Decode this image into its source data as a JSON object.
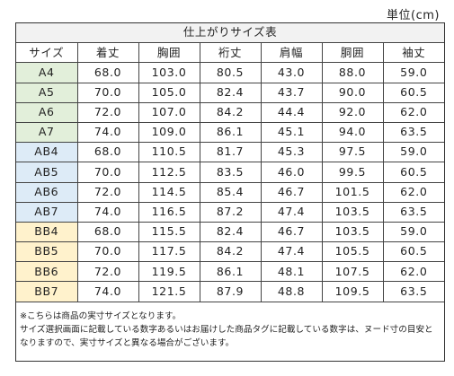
{
  "unit_label": "単位(cm)",
  "table": {
    "title": "仕上がりサイズ表",
    "headers": [
      "サイズ",
      "着丈",
      "胸囲",
      "裄丈",
      "肩幅",
      "胴囲",
      "袖丈"
    ],
    "group_colors": {
      "A": "#e2efda",
      "AB": "#ddebf7",
      "BB": "#fff2cc"
    },
    "rows": [
      {
        "size": "A4",
        "group": "A",
        "values": [
          "68.0",
          "103.0",
          "80.5",
          "43.0",
          "88.0",
          "59.0"
        ]
      },
      {
        "size": "A5",
        "group": "A",
        "values": [
          "70.0",
          "105.0",
          "82.4",
          "43.7",
          "90.0",
          "60.5"
        ]
      },
      {
        "size": "A6",
        "group": "A",
        "values": [
          "72.0",
          "107.0",
          "84.2",
          "44.4",
          "92.0",
          "62.0"
        ]
      },
      {
        "size": "A7",
        "group": "A",
        "values": [
          "74.0",
          "109.0",
          "86.1",
          "45.1",
          "94.0",
          "63.5"
        ]
      },
      {
        "size": "AB4",
        "group": "AB",
        "values": [
          "68.0",
          "110.5",
          "81.7",
          "45.3",
          "97.5",
          "59.0"
        ]
      },
      {
        "size": "AB5",
        "group": "AB",
        "values": [
          "70.0",
          "112.5",
          "83.5",
          "46.0",
          "99.5",
          "60.5"
        ]
      },
      {
        "size": "AB6",
        "group": "AB",
        "values": [
          "72.0",
          "114.5",
          "85.4",
          "46.7",
          "101.5",
          "62.0"
        ]
      },
      {
        "size": "AB7",
        "group": "AB",
        "values": [
          "74.0",
          "116.5",
          "87.2",
          "47.4",
          "103.5",
          "63.5"
        ]
      },
      {
        "size": "BB4",
        "group": "BB",
        "values": [
          "68.0",
          "115.5",
          "82.4",
          "46.7",
          "103.5",
          "59.0"
        ]
      },
      {
        "size": "BB5",
        "group": "BB",
        "values": [
          "70.0",
          "117.5",
          "84.2",
          "47.4",
          "105.5",
          "60.5"
        ]
      },
      {
        "size": "BB6",
        "group": "BB",
        "values": [
          "72.0",
          "119.5",
          "86.1",
          "48.1",
          "107.5",
          "62.0"
        ]
      },
      {
        "size": "BB7",
        "group": "BB",
        "values": [
          "74.0",
          "121.5",
          "87.9",
          "48.8",
          "109.5",
          "63.5"
        ]
      }
    ]
  },
  "notes": {
    "line1": "※こちらは商品の実寸サイズとなります。",
    "line2": "サイズ選択画面に記載している数字あるいはお届けした商品タグに記載している数字は、ヌード寸の目安と",
    "line3": "なりますので、実寸サイズと異なる場合がございます。"
  }
}
